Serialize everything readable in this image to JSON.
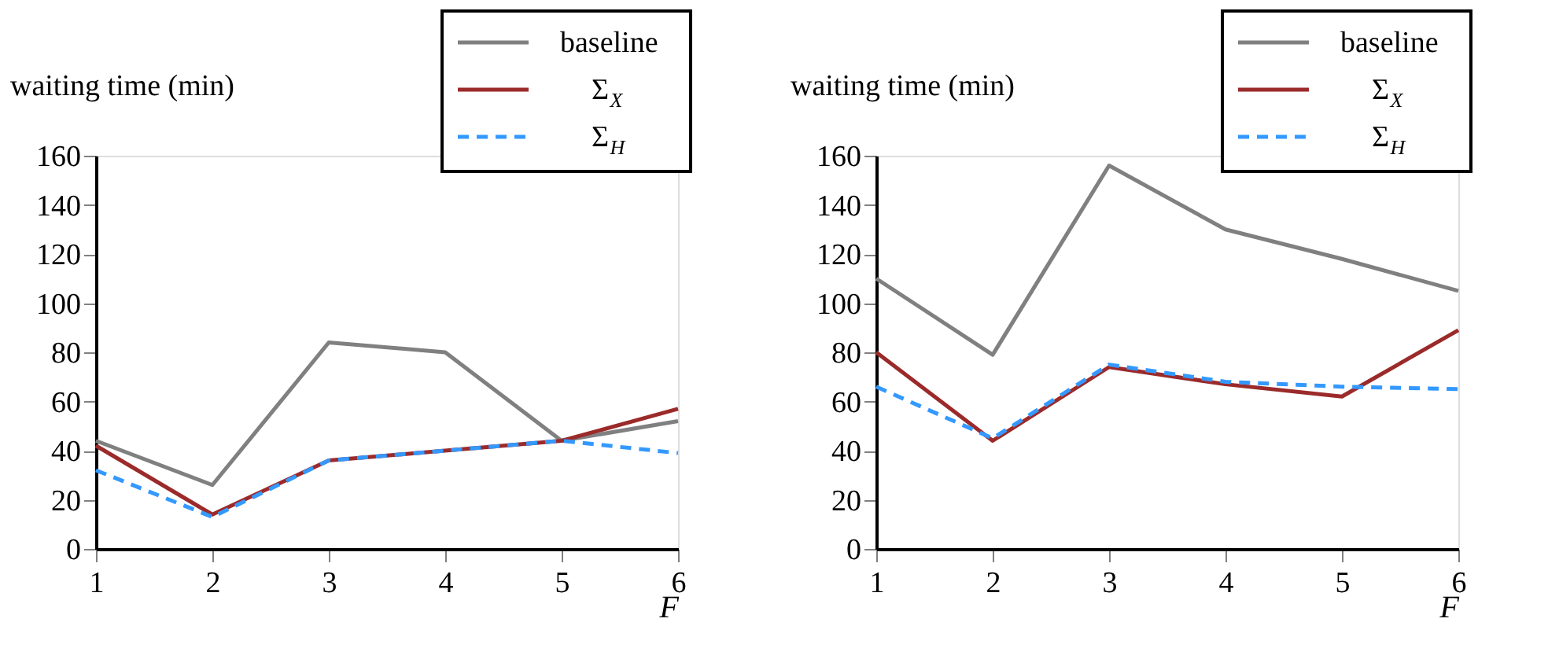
{
  "chart_data": [
    {
      "type": "line",
      "ylabel": "waiting time (min)",
      "xlabel": "F",
      "x": [
        1,
        2,
        3,
        4,
        5,
        6
      ],
      "xlim": [
        1,
        6
      ],
      "xticks": [
        1,
        2,
        3,
        4,
        5,
        6
      ],
      "ylim": [
        0,
        160
      ],
      "yticks": [
        0,
        20,
        40,
        60,
        80,
        100,
        120,
        140,
        160
      ],
      "grid": false,
      "legend": "top right",
      "marker": "none",
      "series": [
        {
          "name": "baseline",
          "color": "#808080",
          "line_style": "solid",
          "values": [
            44,
            26,
            84,
            80,
            44,
            52
          ]
        },
        {
          "name": "Σ$_{X}$",
          "color": "#9b2a2a",
          "line_style": "solid",
          "values": [
            42,
            14,
            36,
            40,
            44,
            57
          ]
        },
        {
          "name": "Σ$_{H}$",
          "color": "#3399ff",
          "line_style": "dashed",
          "values": [
            32,
            13,
            36,
            40,
            44,
            39
          ]
        }
      ]
    },
    {
      "type": "line",
      "ylabel": "waiting time (min)",
      "xlabel": "F",
      "x": [
        1,
        2,
        3,
        4,
        5,
        6
      ],
      "xlim": [
        1,
        6
      ],
      "xticks": [
        1,
        2,
        3,
        4,
        5,
        6
      ],
      "ylim": [
        0,
        160
      ],
      "yticks": [
        0,
        20,
        40,
        60,
        80,
        100,
        120,
        140,
        160
      ],
      "grid": false,
      "legend": "top right",
      "marker": "none",
      "series": [
        {
          "name": "baseline",
          "color": "#808080",
          "line_style": "solid",
          "values": [
            110,
            79,
            156,
            130,
            118,
            105
          ]
        },
        {
          "name": "Σ$_{X}$",
          "color": "#9b2a2a",
          "line_style": "solid",
          "values": [
            80,
            44,
            74,
            67,
            62,
            89
          ]
        },
        {
          "name": "Σ$_{H}$",
          "color": "#3399ff",
          "line_style": "dashed",
          "values": [
            66,
            45,
            75,
            68,
            66,
            65
          ]
        }
      ]
    }
  ]
}
